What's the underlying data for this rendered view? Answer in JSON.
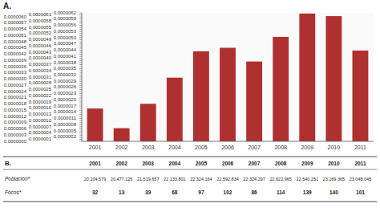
{
  "chart_data": {
    "type": "bar",
    "categories": [
      "2001",
      "2002",
      "2003",
      "2004",
      "2005",
      "2006",
      "2007",
      "2008",
      "2009",
      "2010",
      "2011"
    ],
    "values": [
      1.5837994e-06,
      6.3484746e-07,
      1.8122965e-06,
      3.0722424e-06,
      4.3450675e-06,
      4.5147059e-06,
      3.852305e-06,
      5.0391273e-06,
      6.1667459e-06,
      6.0424617e-06,
      4.3821504e-06
    ],
    "color": "#b03030",
    "ylim": [
      0,
      6.2e-06
    ],
    "yticks": [
      {
        "value": 0,
        "label": "0,0000000"
      },
      {
        "value": 1e-07,
        "label": "0,0000001"
      },
      {
        "value": 2e-07,
        "label": "0,0000002"
      },
      {
        "value": 3e-07,
        "label": "0,0000003"
      },
      {
        "value": 4e-07,
        "label": "0,0000004"
      },
      {
        "value": 5e-07,
        "label": "0,0000005"
      },
      {
        "value": 6e-07,
        "label": "0,0000006"
      },
      {
        "value": 7e-07,
        "label": "0,0000007"
      },
      {
        "value": 8e-07,
        "label": "0,0000008"
      },
      {
        "value": 9e-07,
        "label": "0,0000009"
      },
      {
        "value": 1e-06,
        "label": "0,0000010"
      },
      {
        "value": 1.1e-06,
        "label": "0,0000011"
      },
      {
        "value": 1.2e-06,
        "label": "0,0000012"
      },
      {
        "value": 1.3e-06,
        "label": "0,0000013"
      },
      {
        "value": 1.4e-06,
        "label": "0,0000014"
      },
      {
        "value": 1.5e-06,
        "label": "0,0000015"
      },
      {
        "value": 1.6e-06,
        "label": "0,0000016"
      },
      {
        "value": 1.7e-06,
        "label": "0,0000017"
      },
      {
        "value": 1.8e-06,
        "label": "0,0000018"
      },
      {
        "value": 1.9e-06,
        "label": "0,0000019"
      },
      {
        "value": 2e-06,
        "label": "0,0000020"
      },
      {
        "value": 2.1e-06,
        "label": "0,0000021"
      },
      {
        "value": 2.2e-06,
        "label": "0,0000022"
      },
      {
        "value": 2.3e-06,
        "label": "0,0000023"
      },
      {
        "value": 2.4e-06,
        "label": "0,0000024"
      },
      {
        "value": 2.5e-06,
        "label": "0,0000025"
      },
      {
        "value": 2.6e-06,
        "label": "0,0000026"
      },
      {
        "value": 2.7e-06,
        "label": "0,0000027"
      },
      {
        "value": 2.8e-06,
        "label": "0,0000028"
      },
      {
        "value": 2.9e-06,
        "label": "0,0000029"
      },
      {
        "value": 3e-06,
        "label": "0,0000030"
      },
      {
        "value": 3.1e-06,
        "label": "0,0000031"
      },
      {
        "value": 3.2e-06,
        "label": "0,0000032"
      },
      {
        "value": 3.3e-06,
        "label": "0,0000033"
      },
      {
        "value": 3.4e-06,
        "label": "0,0000034"
      },
      {
        "value": 3.5e-06,
        "label": "0,0000035"
      },
      {
        "value": 3.6e-06,
        "label": "0,0000036"
      },
      {
        "value": 3.7e-06,
        "label": "0,0000037"
      },
      {
        "value": 3.8e-06,
        "label": "0,0000038"
      },
      {
        "value": 3.9e-06,
        "label": "0,0000039"
      },
      {
        "value": 4e-06,
        "label": "0,0000040"
      },
      {
        "value": 4.1e-06,
        "label": "0,0000041"
      },
      {
        "value": 4.2e-06,
        "label": "0,0000042"
      },
      {
        "value": 4.3e-06,
        "label": "0,0000043"
      },
      {
        "value": 4.4e-06,
        "label": "0,0000044"
      },
      {
        "value": 4.5e-06,
        "label": "0,0000045"
      },
      {
        "value": 4.6e-06,
        "label": "0,0000046"
      },
      {
        "value": 4.7e-06,
        "label": "0,0000047"
      },
      {
        "value": 4.8e-06,
        "label": "0,0000048"
      },
      {
        "value": 4.9e-06,
        "label": "0,0000049"
      },
      {
        "value": 5e-06,
        "label": "0,0000050"
      },
      {
        "value": 5.1e-06,
        "label": "0,0000051"
      },
      {
        "value": 5.2e-06,
        "label": "0,0000052"
      },
      {
        "value": 5.3e-06,
        "label": "0,0000053"
      },
      {
        "value": 5.4e-06,
        "label": "0,0000054"
      },
      {
        "value": 5.5e-06,
        "label": "0,0000055"
      },
      {
        "value": 5.6e-06,
        "label": "0,0000056"
      },
      {
        "value": 5.7e-06,
        "label": "0,0000057"
      },
      {
        "value": 5.8e-06,
        "label": "0,0000058"
      },
      {
        "value": 5.9e-06,
        "label": "0,0000059"
      },
      {
        "value": 6e-06,
        "label": "0,0000060"
      },
      {
        "value": 6.1e-06,
        "label": "0,0000061"
      },
      {
        "value": 6.2e-06,
        "label": "0,0000062"
      }
    ],
    "annotations": [
      "A.",
      "B."
    ],
    "table": {
      "columns": [
        "2001",
        "2002",
        "2003",
        "2004",
        "2005",
        "2006",
        "2007",
        "2008",
        "2009",
        "2010",
        "2011"
      ],
      "rows": [
        {
          "name": "Población*",
          "values": [
            20204579,
            20477125,
            21519657,
            22133801,
            22324164,
            22592834,
            22324297,
            22622965,
            22540251,
            23169365,
            23048045
          ],
          "value_labels": [
            "20,204,579",
            "20,477,125",
            "21,519,657",
            "22,133,801",
            "22,324,164",
            "22,592,834",
            "22,324,297",
            "22,622,965",
            "22,540,251",
            "23,169,365",
            "23,048,045"
          ]
        },
        {
          "name": "Focos*",
          "values": [
            32,
            13,
            39,
            68,
            97,
            102,
            86,
            114,
            139,
            140,
            101
          ]
        }
      ]
    }
  }
}
